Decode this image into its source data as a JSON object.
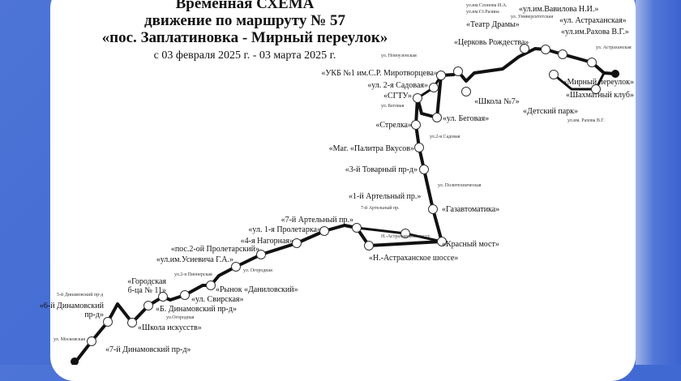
{
  "header": {
    "line1": "Временная СХЕМА",
    "line2": "движение по маршруту № 57",
    "line3": "«пос. Заплатиновка - Мирный переулок»",
    "dates": "с 03 февраля 2025 г. - 03 марта 2025 г."
  },
  "stops": [
    "«7-й Динамовский пр-д»",
    "«6-й Динамовский пр-д»",
    "«Школа искусств»",
    "«Б. Динамовский пр-д»",
    "«Городская б-ца № 11»",
    "«ул. Свирская»",
    "«Рынок «Даниловский»",
    "«ул.им.Усиевича Г.А.»",
    "«пос.2-ой Пролетарский»",
    "«4-я Нагорная»",
    "«ул. 1-я Пролетарка»",
    "«7-й Артельный пр.»",
    "«Н.-Астраханское шоссе»",
    "«1-й Артельный пр.»",
    "«Красный мост»",
    "«Газавтоматика»",
    "«3-й Товарный пр-д»",
    "«Маг. «Палитра Вкусов»",
    "«Стрелка»",
    "«ул. Беговая»",
    "«СГТУ»",
    "«ул. 2-я Садовая»",
    "«УКБ №1 им.С.Р. Миротворцева»",
    "«Церковь Рождества»",
    "«Школа №7»",
    "«Театр Драмы»",
    "«ул.им.Вавилова Н.И.»",
    "«ул. Астраханская»",
    "«Детский парк»",
    "«ул.им.Рахова В.Г.»",
    "«Шахматный клуб»",
    "«Мирный переулок»"
  ],
  "streets": [
    "ул. Московская",
    "5-й Динамовский пр-д",
    "ул.Огородная",
    "ул.2-я Пионерская",
    "ул. Огородная",
    "7-й Артельный пр.",
    "Н.-Астраханское шоссе",
    "ул. Политехническая",
    "ул.2-я Садовая",
    "ул. Беговая",
    "ул. Новоузенская",
    "ул.им.Слонова И.А.",
    "ул.им.Ст.Разина",
    "ул. Университетская",
    "ул. Астраханская",
    "ул.им. Рахова В.Г."
  ],
  "colors": {
    "background": "#3a63cf",
    "card": "#ffffff",
    "route": "#111111"
  }
}
